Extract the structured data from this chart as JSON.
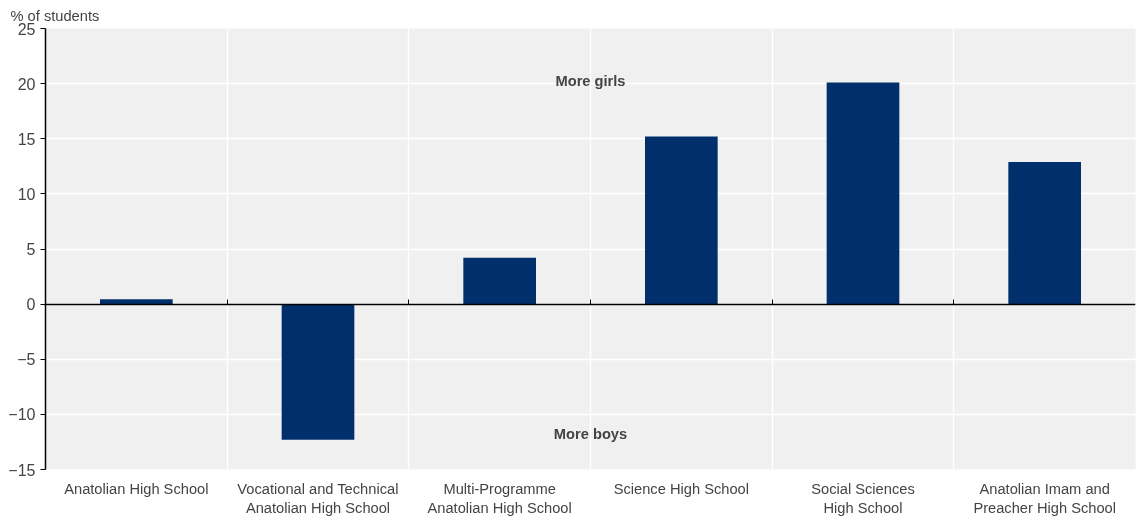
{
  "chart_data": {
    "type": "bar",
    "ylabel": "% of students",
    "categories": [
      "Anatolian High School",
      "Vocational and Technical Anatolian High School",
      "Multi-Programme Anatolian High School",
      "Science High School",
      "Social Sciences High School",
      "Anatolian Imam and Preacher High School"
    ],
    "values": [
      0.45,
      -12.3,
      4.2,
      15.2,
      20.1,
      12.9
    ],
    "color": "#002f6c",
    "ylim": [
      -15,
      25
    ],
    "yticks": [
      -15,
      -10,
      -5,
      0,
      5,
      10,
      15,
      20,
      25
    ],
    "grid": true,
    "annotations": [
      "More girls",
      "More boys"
    ]
  }
}
